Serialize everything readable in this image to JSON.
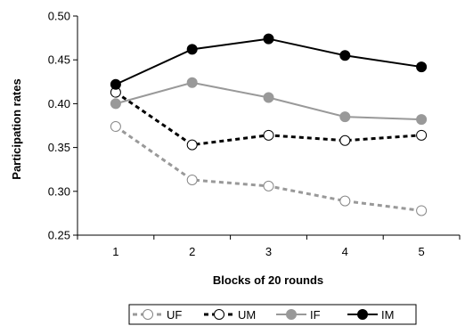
{
  "chart_data": {
    "type": "line",
    "title": "",
    "xlabel": "Blocks of 20 rounds",
    "ylabel": "Participation rates",
    "categories": [
      "1",
      "2",
      "3",
      "4",
      "5"
    ],
    "ylim": [
      0.25,
      0.5
    ],
    "yticks": [
      0.25,
      0.3,
      0.35,
      0.4,
      0.45,
      0.5
    ],
    "ytick_labels": [
      "0.25",
      "0.30",
      "0.35",
      "0.40",
      "0.45",
      "0.50"
    ],
    "grid": false,
    "legend": "bottom",
    "series": [
      {
        "name": "UF",
        "values": [
          0.374,
          0.313,
          0.306,
          0.289,
          0.278
        ],
        "color": "#999999",
        "line": "dashed",
        "marker": "open-circle"
      },
      {
        "name": "UM",
        "values": [
          0.413,
          0.353,
          0.364,
          0.358,
          0.364
        ],
        "color": "#000000",
        "line": "dashed",
        "marker": "open-circle"
      },
      {
        "name": "IF",
        "values": [
          0.4,
          0.424,
          0.407,
          0.385,
          0.382
        ],
        "color": "#999999",
        "line": "solid",
        "marker": "filled-circle"
      },
      {
        "name": "IM",
        "values": [
          0.422,
          0.462,
          0.474,
          0.455,
          0.442
        ],
        "color": "#000000",
        "line": "solid",
        "marker": "filled-circle"
      }
    ]
  }
}
